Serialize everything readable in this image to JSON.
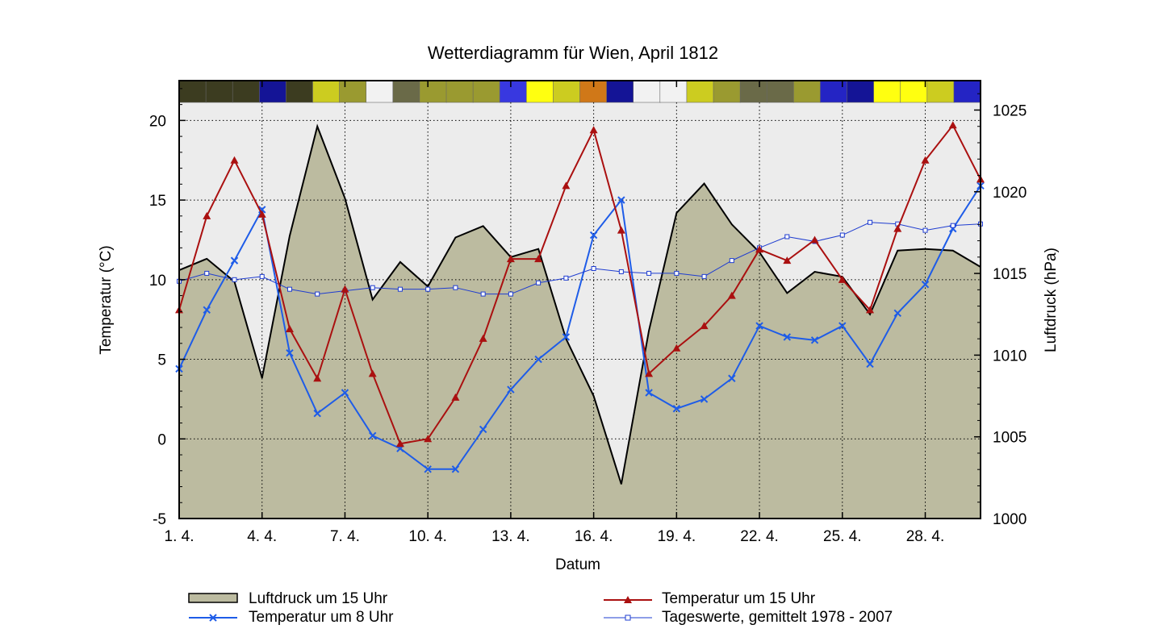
{
  "chart_data": {
    "type": "line",
    "title": "Wetterdiagramm für Wien, April 1812",
    "xlabel": "Datum",
    "ylabel_left": "Temperatur (°C)",
    "ylabel_right": "Luftdruck (hPa)",
    "xlim": [
      1,
      30
    ],
    "ylim_left": [
      -5,
      22.5
    ],
    "ylim_right": [
      1000,
      1026.8
    ],
    "x": [
      1,
      2,
      3,
      4,
      5,
      6,
      7,
      8,
      9,
      10,
      11,
      12,
      13,
      14,
      15,
      16,
      17,
      18,
      19,
      20,
      21,
      22,
      23,
      24,
      25,
      26,
      27,
      28,
      29,
      30
    ],
    "x_ticks": [
      1,
      4,
      7,
      10,
      13,
      16,
      19,
      22,
      25,
      28
    ],
    "x_tick_labels": [
      "1. 4.",
      "4. 4.",
      "7. 4.",
      "10. 4.",
      "13. 4.",
      "16. 4.",
      "19. 4.",
      "22. 4.",
      "25. 4.",
      "28. 4."
    ],
    "y_ticks_left": [
      -5,
      0,
      5,
      10,
      15,
      20
    ],
    "y_tick_labels_left": [
      "-5",
      "0",
      "5",
      "10",
      "15",
      "20"
    ],
    "y_ticks_right": [
      1000,
      1005,
      1010,
      1015,
      1020,
      1025
    ],
    "y_tick_labels_right": [
      "1000",
      "1005",
      "1010",
      "1015",
      "1020",
      "1025"
    ],
    "grid": true,
    "legend_position": "bottom",
    "series": [
      {
        "name": "Luftdruck um 15 Uhr",
        "type": "area",
        "axis": "right",
        "color": "#bcbba0",
        "values": [
          1015.2,
          1015.9,
          1014.5,
          1008.6,
          1017.3,
          1024.0,
          1019.6,
          1013.4,
          1015.7,
          1014.2,
          1017.2,
          1017.9,
          1016.0,
          1016.5,
          1011.0,
          1007.5,
          1002.1,
          1011.5,
          1018.7,
          1020.5,
          1018.0,
          1016.3,
          1013.8,
          1015.1,
          1014.8,
          1012.5,
          1016.4,
          1016.5,
          1016.4,
          1015.4
        ]
      },
      {
        "name": "Temperatur um 15 Uhr",
        "type": "line",
        "axis": "left",
        "color": "#aa1010",
        "marker": "triangle",
        "values": [
          8.1,
          14.0,
          17.5,
          14.1,
          6.9,
          3.8,
          9.4,
          4.1,
          -0.3,
          0.0,
          2.6,
          6.3,
          11.3,
          11.3,
          15.9,
          19.4,
          13.1,
          4.1,
          5.7,
          7.1,
          9.0,
          11.9,
          11.2,
          12.5,
          10.0,
          8.1,
          13.2,
          17.5,
          19.7,
          16.3
        ]
      },
      {
        "name": "Temperatur um 8 Uhr",
        "type": "line",
        "axis": "left",
        "color": "#1e5ce8",
        "marker": "x",
        "values": [
          4.4,
          8.1,
          11.2,
          14.4,
          5.4,
          1.6,
          2.9,
          0.2,
          -0.6,
          -1.9,
          -1.9,
          0.6,
          3.1,
          5.0,
          6.4,
          12.8,
          15.0,
          2.9,
          1.9,
          2.5,
          3.8,
          7.1,
          6.4,
          6.2,
          7.1,
          4.7,
          7.9,
          9.7,
          13.2,
          15.9
        ]
      },
      {
        "name": "Tageswerte, gemittelt 1978 - 2007",
        "type": "line",
        "axis": "left",
        "color": "#1e3cd0",
        "marker": "square",
        "values": [
          9.9,
          10.4,
          10.0,
          10.2,
          9.4,
          9.1,
          9.3,
          9.5,
          9.4,
          9.4,
          9.5,
          9.1,
          9.1,
          9.8,
          10.1,
          10.7,
          10.5,
          10.4,
          10.4,
          10.2,
          11.2,
          12.0,
          12.7,
          12.4,
          12.8,
          13.6,
          13.5,
          13.1,
          13.4,
          13.5
        ]
      }
    ],
    "weather_bar": {
      "colors": [
        "#3c3c20",
        "#3c3c20",
        "#3c3c20",
        "#141496",
        "#3c3c20",
        "#cccc20",
        "#9a9a30",
        "#f2f2f2",
        "#6a6a48",
        "#9a9a30",
        "#9a9a30",
        "#9a9a30",
        "#3838e0",
        "#ffff10",
        "#cccc20",
        "#d07818",
        "#141496",
        "#f2f2f2",
        "#f2f2f2",
        "#cccc20",
        "#9a9a30",
        "#6a6a48",
        "#6a6a48",
        "#9a9a30",
        "#2424c4",
        "#141496",
        "#ffff10",
        "#ffff10",
        "#cccc20",
        "#2424c4"
      ]
    }
  }
}
